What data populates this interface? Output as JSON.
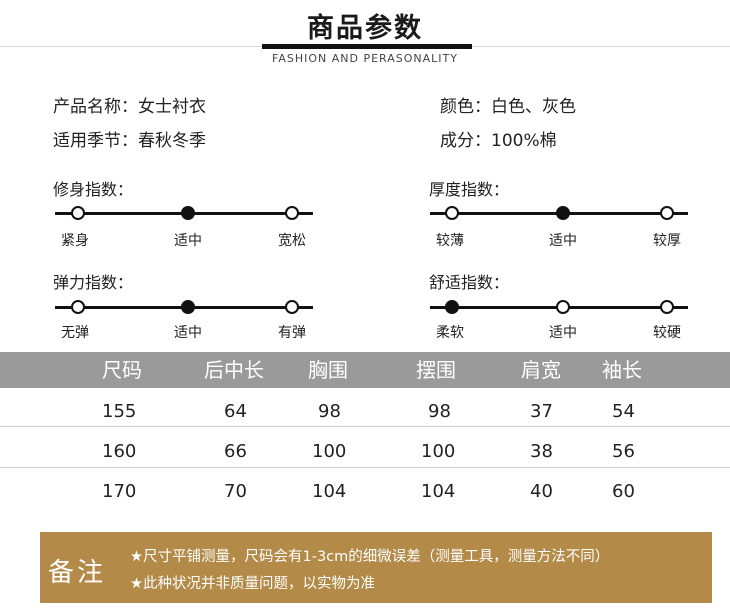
{
  "header": {
    "title": "商品参数",
    "subtitle": "FASHION AND PERASONALITY"
  },
  "info": {
    "name": "产品名称：女士衬衣",
    "season": "适用季节：春秋冬季",
    "color": "颜色：白色、灰色",
    "material": "成分：100%棉"
  },
  "scales": {
    "fit": {
      "label": "修身指数：",
      "ticks": [
        "紧身",
        "适中",
        "宽松"
      ],
      "selected": 1
    },
    "thickness": {
      "label": "厚度指数：",
      "ticks": [
        "较薄",
        "适中",
        "较厚"
      ],
      "selected": 1
    },
    "elasticity": {
      "label": "弹力指数：",
      "ticks": [
        "无弹",
        "适中",
        "有弹"
      ],
      "selected": 1
    },
    "comfort": {
      "label": "舒适指数：",
      "ticks": [
        "柔软",
        "适中",
        "较硬"
      ],
      "selected": 0
    }
  },
  "size_table": {
    "headers": [
      "尺码",
      "后中长",
      "胸围",
      "摆围",
      "肩宽",
      "袖长"
    ],
    "rows": [
      [
        "155",
        "64",
        "98",
        "98",
        "37",
        "54"
      ],
      [
        "160",
        "66",
        "100",
        "100",
        "38",
        "56"
      ],
      [
        "170",
        "70",
        "104",
        "104",
        "40",
        "60"
      ]
    ]
  },
  "note": {
    "title": "备注",
    "line1": "★尺寸平铺测量，尺码会有1-3cm的细微误差（测量工具，测量方法不同）",
    "line2": "★此种状况并非质量问题，以实物为准"
  },
  "colors": {
    "accent": "#b38a48",
    "table_header": "#9a9a9a",
    "ink": "#111111"
  }
}
